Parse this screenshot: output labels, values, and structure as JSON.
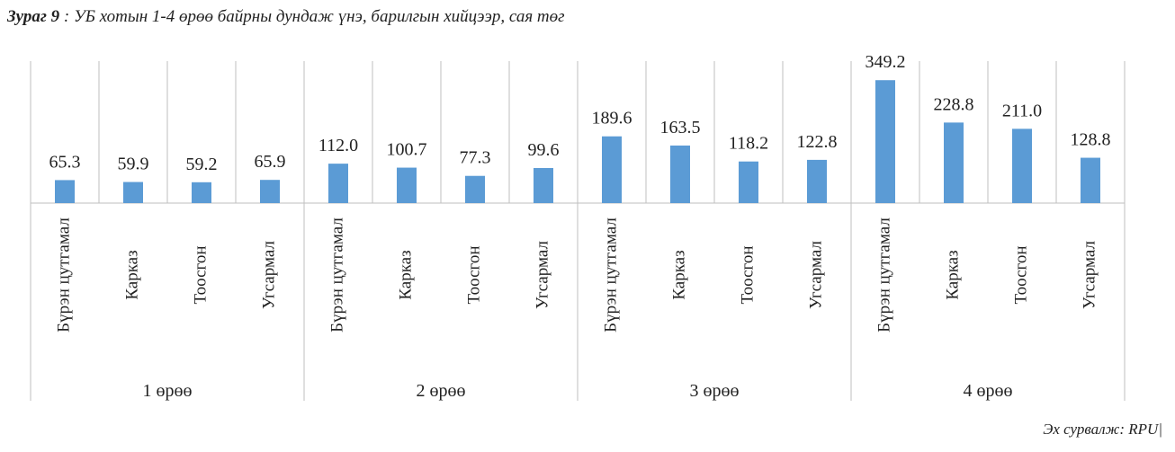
{
  "caption": {
    "prefix": "Зураг 9",
    "text": " : УБ хотын 1-4 өрөө байрны дундаж үнэ, барилгын хийцээр, сая төг"
  },
  "source": "Эх сурвалж: RPU|",
  "colors": {
    "bar": "#5b9bd5",
    "axis": "#bfbfbf",
    "text": "#222222"
  },
  "chart_data": {
    "type": "bar",
    "groups": [
      {
        "name": "1 өрөө",
        "categories": [
          "Бүрэн цутгамал",
          "Карказ",
          "Тоосгон",
          "Угсармал"
        ],
        "values": [
          65.3,
          59.9,
          59.2,
          65.9
        ]
      },
      {
        "name": "2 өрөө",
        "categories": [
          "Бүрэн цутгамал",
          "Карказ",
          "Тоосгон",
          "Угсармал"
        ],
        "values": [
          112.0,
          100.7,
          77.3,
          99.6
        ]
      },
      {
        "name": "3 өрөө",
        "categories": [
          "Бүрэн цутгамал",
          "Карказ",
          "Тоосгон",
          "Угсармал"
        ],
        "values": [
          189.6,
          163.5,
          118.2,
          122.8
        ]
      },
      {
        "name": "4 өрөө",
        "categories": [
          "Бүрэн цутгамал",
          "Карказ",
          "Тоосгон",
          "Угсармал"
        ],
        "values": [
          349.2,
          228.8,
          211.0,
          128.8
        ]
      }
    ],
    "data_labels": true,
    "grid": false,
    "legend": "none",
    "ylim": [
      0,
      360
    ]
  }
}
